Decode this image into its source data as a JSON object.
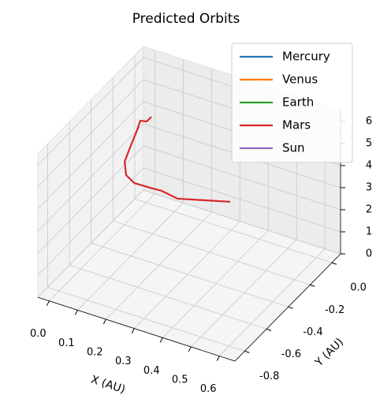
{
  "chart_data": {
    "type": "line3d",
    "title": "Predicted Orbits",
    "xlabel": "X (AU)",
    "ylabel": "Y (AU)",
    "xlim": [
      -0.04,
      0.655
    ],
    "ylim": [
      -0.89,
      0.08
    ],
    "zlim": [
      0,
      6.5
    ],
    "xticks": [
      {
        "value": 0,
        "label": "0.0"
      },
      0.1,
      0.2,
      0.3,
      0.4,
      0.5,
      0.6
    ],
    "yticks": [
      {
        "value": 0,
        "label": "0.0"
      },
      -0.2,
      -0.4,
      -0.6,
      -0.8
    ],
    "zticks": [
      0,
      1,
      2,
      3,
      4,
      5,
      6
    ],
    "grid": true,
    "legend": "upper right",
    "series": [
      {
        "name": "Mercury",
        "color": "#1f77b4",
        "x": [],
        "y": [],
        "z": []
      },
      {
        "name": "Venus",
        "color": "#ff7f0e",
        "x": [],
        "y": [],
        "z": []
      },
      {
        "name": "Earth",
        "color": "#2ca02c",
        "x": [],
        "y": [],
        "z": []
      },
      {
        "name": "Mars",
        "color": "#d62728",
        "x": [
          0.114,
          0.102,
          0.077,
          0.076,
          0.077,
          0.079,
          0.095,
          0.114,
          0.151,
          0.179,
          0.225,
          0.285,
          0.339
        ],
        "y": [
          -0.248,
          -0.26,
          -0.254,
          -0.28,
          -0.342,
          -0.403,
          -0.431,
          -0.407,
          -0.359,
          -0.324,
          -0.297,
          -0.202,
          -0.111
        ],
        "z": [
          5.6,
          5.4,
          5.3,
          5.0,
          4.6,
          4.2,
          3.8,
          3.4,
          3.1,
          2.9,
          2.6,
          2.3,
          2.0
        ]
      },
      {
        "name": "Sun",
        "color": "#9467bd",
        "x": [],
        "y": [],
        "z": []
      }
    ]
  }
}
